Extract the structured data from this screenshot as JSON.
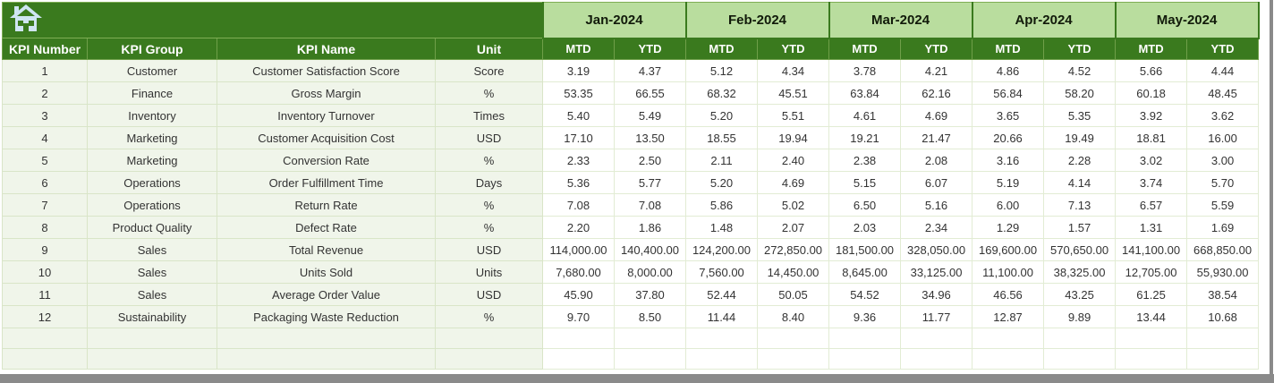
{
  "banner": {
    "home_icon": "home"
  },
  "columns": [
    "KPI Number",
    "KPI Group",
    "KPI Name",
    "Unit"
  ],
  "months": [
    {
      "label": "Jan-2024",
      "sub": [
        "MTD",
        "YTD"
      ]
    },
    {
      "label": "Feb-2024",
      "sub": [
        "MTD",
        "YTD"
      ]
    },
    {
      "label": "Mar-2024",
      "sub": [
        "MTD",
        "YTD"
      ]
    },
    {
      "label": "Apr-2024",
      "sub": [
        "MTD",
        "YTD"
      ]
    },
    {
      "label": "May-2024",
      "sub": [
        "MTD",
        "YTD"
      ]
    }
  ],
  "rows": [
    {
      "number": "1",
      "group": "Customer",
      "name": "Customer Satisfaction Score",
      "unit": "Score",
      "values": [
        "3.19",
        "4.37",
        "5.12",
        "4.34",
        "3.78",
        "4.21",
        "4.86",
        "4.52",
        "5.66",
        "4.44"
      ]
    },
    {
      "number": "2",
      "group": "Finance",
      "name": "Gross Margin",
      "unit": "%",
      "values": [
        "53.35",
        "66.55",
        "68.32",
        "45.51",
        "63.84",
        "62.16",
        "56.84",
        "58.20",
        "60.18",
        "48.45"
      ]
    },
    {
      "number": "3",
      "group": "Inventory",
      "name": "Inventory Turnover",
      "unit": "Times",
      "values": [
        "5.40",
        "5.49",
        "5.20",
        "5.51",
        "4.61",
        "4.69",
        "3.65",
        "5.35",
        "3.92",
        "3.62"
      ]
    },
    {
      "number": "4",
      "group": "Marketing",
      "name": "Customer Acquisition Cost",
      "unit": "USD",
      "values": [
        "17.10",
        "13.50",
        "18.55",
        "19.94",
        "19.21",
        "21.47",
        "20.66",
        "19.49",
        "18.81",
        "16.00"
      ]
    },
    {
      "number": "5",
      "group": "Marketing",
      "name": "Conversion Rate",
      "unit": "%",
      "values": [
        "2.33",
        "2.50",
        "2.11",
        "2.40",
        "2.38",
        "2.08",
        "3.16",
        "2.28",
        "3.02",
        "3.00"
      ]
    },
    {
      "number": "6",
      "group": "Operations",
      "name": "Order Fulfillment Time",
      "unit": "Days",
      "values": [
        "5.36",
        "5.77",
        "5.20",
        "4.69",
        "5.15",
        "6.07",
        "5.19",
        "4.14",
        "3.74",
        "5.70"
      ]
    },
    {
      "number": "7",
      "group": "Operations",
      "name": "Return Rate",
      "unit": "%",
      "values": [
        "7.08",
        "7.08",
        "5.86",
        "5.02",
        "6.50",
        "5.16",
        "6.00",
        "7.13",
        "6.57",
        "5.59"
      ]
    },
    {
      "number": "8",
      "group": "Product Quality",
      "name": "Defect Rate",
      "unit": "%",
      "values": [
        "2.20",
        "1.86",
        "1.48",
        "2.07",
        "2.03",
        "2.34",
        "1.29",
        "1.57",
        "1.31",
        "1.69"
      ]
    },
    {
      "number": "9",
      "group": "Sales",
      "name": "Total Revenue",
      "unit": "USD",
      "values": [
        "114,000.00",
        "140,400.00",
        "124,200.00",
        "272,850.00",
        "181,500.00",
        "328,050.00",
        "169,600.00",
        "570,650.00",
        "141,100.00",
        "668,850.00"
      ]
    },
    {
      "number": "10",
      "group": "Sales",
      "name": "Units Sold",
      "unit": "Units",
      "values": [
        "7,680.00",
        "8,000.00",
        "7,560.00",
        "14,450.00",
        "8,645.00",
        "33,125.00",
        "11,100.00",
        "38,325.00",
        "12,705.00",
        "55,930.00"
      ]
    },
    {
      "number": "11",
      "group": "Sales",
      "name": "Average Order Value",
      "unit": "USD",
      "values": [
        "45.90",
        "37.80",
        "52.44",
        "50.05",
        "54.52",
        "34.96",
        "46.56",
        "43.25",
        "61.25",
        "38.54"
      ]
    },
    {
      "number": "12",
      "group": "Sustainability",
      "name": "Packaging Waste Reduction",
      "unit": "%",
      "values": [
        "9.70",
        "8.50",
        "11.44",
        "8.40",
        "9.36",
        "11.77",
        "12.87",
        "9.89",
        "13.44",
        "10.68"
      ]
    }
  ],
  "colors": {
    "header_green": "#3a7a1e",
    "month_band_green": "#b9dd9e",
    "row_tint_green": "#f0f5ea",
    "home_icon_blue": "#cfe5f2"
  }
}
